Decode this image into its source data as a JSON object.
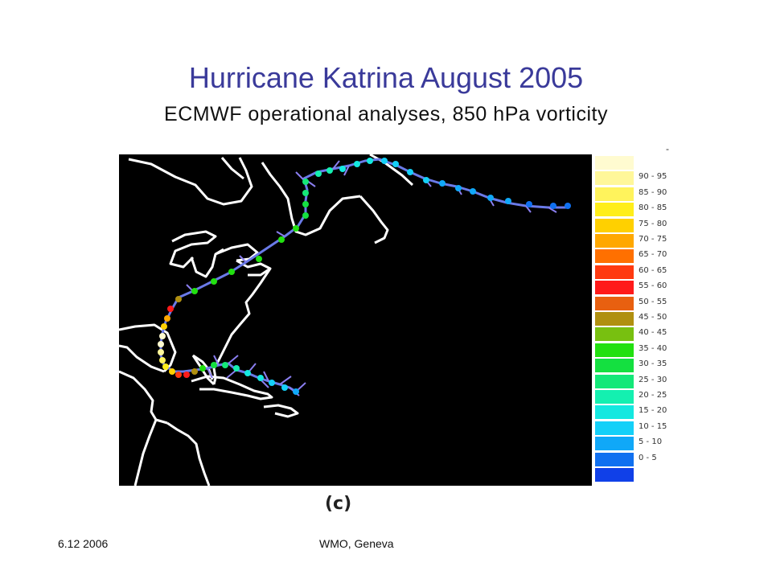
{
  "slide": {
    "title": "Hurricane Katrina August 2005",
    "subtitle": "ECMWF operational analyses,  850 hPa vorticity",
    "caption": "(c)",
    "footer_date": "6.12 2006",
    "footer_org": "WMO, Geneva"
  },
  "legend": {
    "dash": "-",
    "items": [
      {
        "label": "",
        "color": "#fffbd0"
      },
      {
        "label": "90 - 95",
        "color": "#fff79a"
      },
      {
        "label": "85 - 90",
        "color": "#fff35c"
      },
      {
        "label": "80 - 85",
        "color": "#ffee1a"
      },
      {
        "label": "75 - 80",
        "color": "#ffd000"
      },
      {
        "label": "70 - 75",
        "color": "#ffa800"
      },
      {
        "label": "65 - 70",
        "color": "#ff7000"
      },
      {
        "label": "60 - 65",
        "color": "#ff3a10"
      },
      {
        "label": "55 - 60",
        "color": "#ff1a1a"
      },
      {
        "label": "50 - 55",
        "color": "#e86010"
      },
      {
        "label": "45 - 50",
        "color": "#b09010"
      },
      {
        "label": "40 - 45",
        "color": "#78c010"
      },
      {
        "label": "35 - 40",
        "color": "#22e010"
      },
      {
        "label": "30 - 35",
        "color": "#14e040"
      },
      {
        "label": "25 - 30",
        "color": "#14e878"
      },
      {
        "label": "20 - 25",
        "color": "#14f0b0"
      },
      {
        "label": "15 - 20",
        "color": "#14e8e0"
      },
      {
        "label": "10 - 15",
        "color": "#14d0f8"
      },
      {
        "label": "5 - 10",
        "color": "#10a8f8"
      },
      {
        "label": "0 - 5",
        "color": "#1070f0"
      },
      {
        "label": "",
        "color": "#1040e8"
      }
    ]
  },
  "colors": {
    "map_bg": "#000000",
    "coast": "#ffffff",
    "wind_barb": "#8a7ef0",
    "title": "#3a3a9a"
  }
}
